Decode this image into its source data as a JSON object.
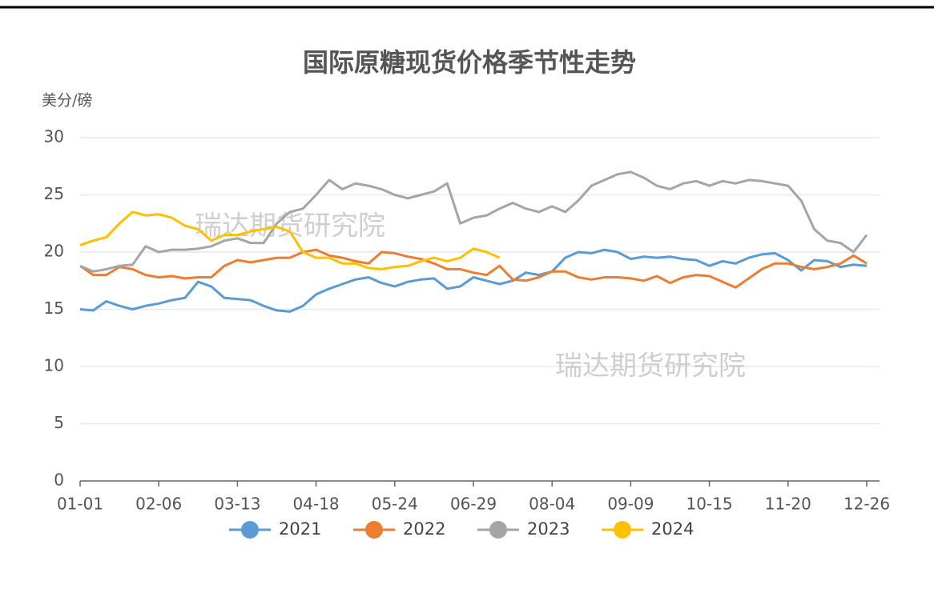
{
  "chart_data": {
    "type": "line",
    "title": "国际原糖现货价格季节性走势",
    "y_label": "美分/磅",
    "watermarks": [
      "瑞达期货研究院",
      "瑞达期货研究院"
    ],
    "categories": [
      "01-01",
      null,
      null,
      null,
      null,
      null,
      "02-06",
      null,
      null,
      null,
      null,
      null,
      "03-13",
      null,
      null,
      null,
      null,
      null,
      "04-18",
      null,
      null,
      null,
      null,
      null,
      "05-24",
      null,
      null,
      null,
      null,
      null,
      "06-29",
      null,
      null,
      null,
      null,
      null,
      "08-04",
      null,
      null,
      null,
      null,
      null,
      "09-09",
      null,
      null,
      null,
      null,
      null,
      "10-15",
      null,
      null,
      null,
      null,
      null,
      "11-20",
      null,
      null,
      null,
      null,
      null,
      "12-26"
    ],
    "series": [
      {
        "name": "2021",
        "color": "#5b9bd5",
        "values": [
          15.0,
          14.9,
          15.7,
          15.3,
          15.0,
          15.3,
          15.5,
          15.8,
          16.0,
          17.4,
          17.0,
          16.0,
          15.9,
          15.8,
          15.3,
          14.9,
          14.8,
          15.3,
          16.3,
          16.8,
          17.2,
          17.6,
          17.8,
          17.3,
          17.0,
          17.4,
          17.6,
          17.7,
          16.8,
          17.0,
          17.8,
          17.5,
          17.2,
          17.5,
          18.2,
          18.0,
          18.3,
          19.5,
          20.0,
          19.9,
          20.2,
          20.0,
          19.4,
          19.6,
          19.5,
          19.6,
          19.4,
          19.3,
          18.8,
          19.2,
          19.0,
          19.5,
          19.8,
          19.9,
          19.3,
          18.4,
          19.3,
          19.2,
          18.7,
          18.9,
          18.8
        ]
      },
      {
        "name": "2022",
        "color": "#ed7d31",
        "values": [
          18.8,
          18.0,
          18.0,
          18.7,
          18.5,
          18.0,
          17.8,
          17.9,
          17.7,
          17.8,
          17.8,
          18.8,
          19.3,
          19.1,
          19.3,
          19.5,
          19.5,
          20.0,
          20.2,
          19.7,
          19.5,
          19.2,
          19.0,
          20.0,
          19.9,
          19.6,
          19.4,
          19.0,
          18.5,
          18.5,
          18.2,
          18.0,
          18.8,
          17.6,
          17.5,
          17.8,
          18.3,
          18.3,
          17.8,
          17.6,
          17.8,
          17.8,
          17.7,
          17.5,
          17.9,
          17.3,
          17.8,
          18.0,
          17.9,
          17.4,
          16.9,
          17.7,
          18.5,
          19.0,
          19.0,
          18.7,
          18.5,
          18.7,
          19.0,
          19.7,
          19.0
        ]
      },
      {
        "name": "2023",
        "color": "#a5a5a5",
        "values": [
          18.8,
          18.3,
          18.5,
          18.8,
          18.9,
          20.5,
          20.0,
          20.2,
          20.2,
          20.3,
          20.5,
          21.0,
          21.2,
          20.8,
          20.8,
          22.5,
          23.5,
          23.8,
          25.0,
          26.3,
          25.5,
          26.0,
          25.8,
          25.5,
          25.0,
          24.7,
          25.0,
          25.3,
          26.0,
          22.5,
          23.0,
          23.2,
          23.8,
          24.3,
          23.8,
          23.5,
          24.0,
          23.5,
          24.5,
          25.8,
          26.3,
          26.8,
          27.0,
          26.5,
          25.8,
          25.5,
          26.0,
          26.2,
          25.8,
          26.2,
          26.0,
          26.3,
          26.2,
          26.0,
          25.8,
          24.5,
          22.0,
          21.0,
          20.8,
          20.0,
          21.5
        ]
      },
      {
        "name": "2024",
        "color": "#ffc000",
        "values": [
          20.6,
          21.0,
          21.3,
          22.5,
          23.5,
          23.2,
          23.3,
          23.0,
          22.3,
          22.0,
          21.0,
          21.5,
          21.5,
          21.8,
          22.0,
          22.2,
          21.8,
          20.0,
          19.5,
          19.5,
          19.0,
          19.0,
          18.6,
          18.5,
          18.7,
          18.8,
          19.2,
          19.5,
          19.2,
          19.5,
          20.3,
          20.0,
          19.5,
          null,
          null,
          null,
          null,
          null,
          null,
          null,
          null,
          null,
          null,
          null,
          null,
          null,
          null,
          null,
          null,
          null,
          null,
          null,
          null,
          null,
          null,
          null,
          null,
          null,
          null,
          null,
          null
        ]
      }
    ],
    "ylim": [
      0,
      30
    ],
    "yticks": [
      0,
      5,
      10,
      15,
      20,
      25,
      30
    ],
    "grid": true,
    "legend": "bottom"
  }
}
